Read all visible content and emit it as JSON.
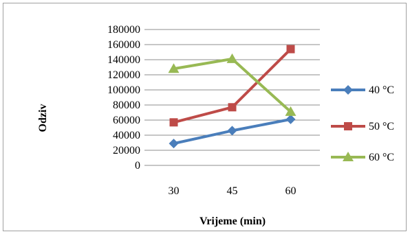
{
  "chart_data": {
    "type": "line",
    "categories": [
      "30",
      "45",
      "60"
    ],
    "series": [
      {
        "name": "40 °C",
        "values": [
          29000,
          46000,
          61000
        ],
        "color": "#4a7ebb",
        "marker": "diamond"
      },
      {
        "name": "50 °C",
        "values": [
          57000,
          77000,
          154000
        ],
        "color": "#be4b48",
        "marker": "square"
      },
      {
        "name": "60 °C",
        "values": [
          128000,
          141000,
          71000
        ],
        "color": "#98b954",
        "marker": "triangle"
      }
    ],
    "xlabel": "Vrijeme (min)",
    "ylabel": "Odziv",
    "ylim": [
      0,
      180000
    ],
    "yticks": [
      "0",
      "20000",
      "40000",
      "60000",
      "80000",
      "100000",
      "120000",
      "140000",
      "160000",
      "180000"
    ],
    "grid": true,
    "legend": "right"
  }
}
